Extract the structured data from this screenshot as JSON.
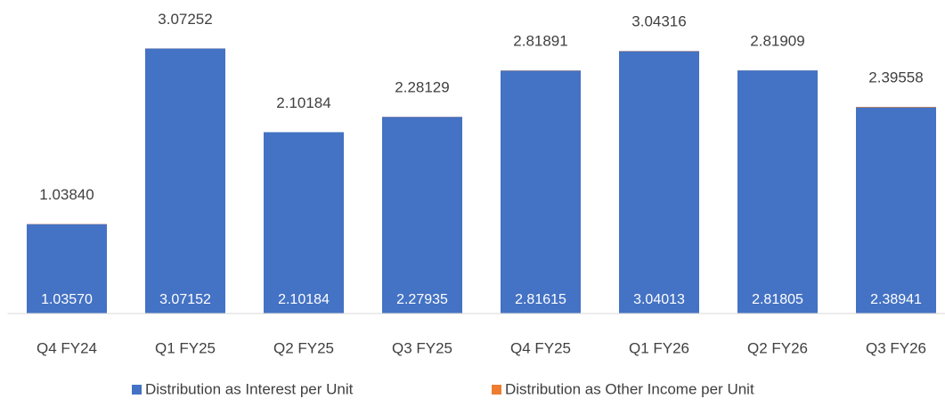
{
  "chart_data": {
    "type": "stacked_bar",
    "categories": [
      "Q4 FY24",
      "Q1 FY25",
      "Q2 FY25",
      "Q3 FY25",
      "Q4 FY25",
      "Q1 FY26",
      "Q2 FY26",
      "Q3 FY26"
    ],
    "series": [
      {
        "name": "Distribution as Interest per Unit",
        "color": "#4472c4",
        "values": [
          1.0357,
          3.07152,
          2.10184,
          2.27935,
          2.81615,
          3.04013,
          2.81805,
          2.38941
        ],
        "value_labels": [
          "1.03570",
          "3.07152",
          "2.10184",
          "2.27935",
          "2.81615",
          "3.04013",
          "2.81805",
          "2.38941"
        ]
      },
      {
        "name": "Distribution as Other Income per Unit",
        "color": "#ed7d31",
        "values": [
          0.0027,
          0.001,
          0,
          0.00194,
          0.00276,
          0.00303,
          0.00104,
          0.00617
        ]
      }
    ],
    "total_labels": [
      "1.03840",
      "3.07252",
      "2.10184",
      "2.28129",
      "2.81891",
      "3.04316",
      "2.81909",
      "2.39558"
    ],
    "ylim": [
      0,
      3.5
    ],
    "legend": "bottom"
  }
}
